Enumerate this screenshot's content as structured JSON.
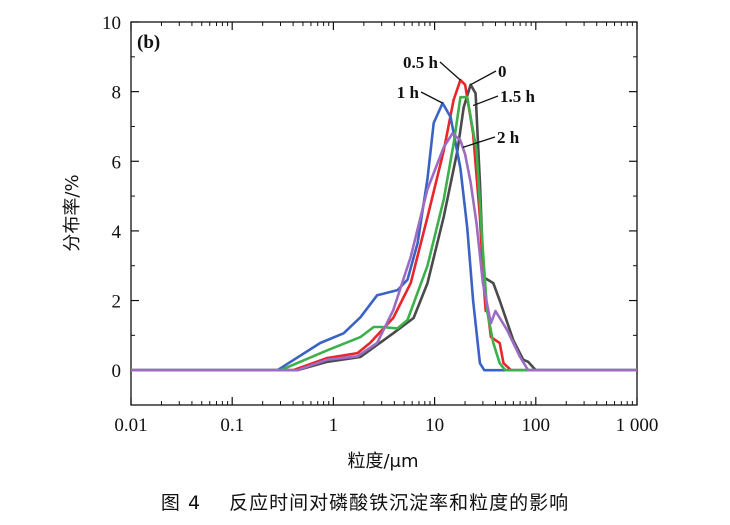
{
  "chart_data": {
    "type": "line",
    "panel_label": "(b)",
    "xlabel": "粒度/μm",
    "ylabel": "分布率/%",
    "xscale": "log",
    "xlim": [
      0.01,
      1000
    ],
    "ylim": [
      -1,
      10
    ],
    "xticks": [
      0.01,
      0.1,
      1,
      10,
      100,
      1000
    ],
    "xtick_labels": [
      "0.01",
      "0.1",
      "1",
      "10",
      "100",
      "1 000"
    ],
    "yticks": [
      0,
      2,
      4,
      6,
      8,
      10
    ],
    "ytick_labels": [
      "0",
      "2",
      "4",
      "6",
      "8",
      "10"
    ],
    "grid": false,
    "series": [
      {
        "name": "0",
        "color": "#4a4a4a",
        "x": [
          0.01,
          0.44,
          0.87,
          1.85,
          3.9,
          6.2,
          8.5,
          12.3,
          16.8,
          19.4,
          22.7,
          25.4,
          28,
          30.5,
          38,
          44,
          60,
          75,
          84,
          100,
          1000
        ],
        "y": [
          0,
          0,
          0.24,
          0.38,
          1.06,
          1.5,
          2.5,
          4.4,
          6.3,
          7.55,
          8.2,
          7.95,
          5.4,
          2.67,
          2.5,
          2.0,
          0.86,
          0.3,
          0.24,
          0,
          0
        ],
        "label_at": [
          22.7,
          8.2
        ]
      },
      {
        "name": "0.5 h",
        "color": "#e8262b",
        "x": [
          0.01,
          0.4,
          0.87,
          1.73,
          2.3,
          3.9,
          5.8,
          8.5,
          12.3,
          15.4,
          18,
          20,
          24,
          28,
          30.5,
          32,
          33.5,
          36,
          44,
          48,
          57,
          1000
        ],
        "y": [
          0,
          0,
          0.35,
          0.49,
          0.78,
          1.5,
          2.5,
          4.4,
          6.3,
          7.76,
          8.33,
          8.2,
          6.8,
          4.4,
          2.5,
          1.7,
          1.7,
          0.95,
          0.78,
          0.2,
          0,
          0
        ],
        "label_at": [
          18,
          8.33
        ]
      },
      {
        "name": "1 h",
        "color": "#3b63c4",
        "x": [
          0.01,
          0.28,
          0.74,
          1.26,
          1.85,
          2.7,
          4.3,
          5.4,
          6.8,
          8.5,
          9.8,
          12,
          14.4,
          18,
          21,
          24,
          28,
          31,
          1000
        ],
        "y": [
          0,
          0,
          0.78,
          1.06,
          1.52,
          2.15,
          2.3,
          2.6,
          3.65,
          5.5,
          7.1,
          7.67,
          7.27,
          5.8,
          4.1,
          2.0,
          0.2,
          0,
          0
        ],
        "label_at": [
          12,
          7.67
        ]
      },
      {
        "name": "1.5 h",
        "color": "#3cb04a",
        "x": [
          0.01,
          0.3,
          0.87,
          1.85,
          2.5,
          3,
          4.3,
          5.4,
          8.5,
          12.3,
          15.4,
          18,
          21,
          26,
          30,
          33,
          38,
          44,
          50,
          1000
        ],
        "y": [
          0,
          0,
          0.57,
          0.95,
          1.24,
          1.24,
          1.2,
          1.44,
          3.0,
          4.9,
          6.5,
          7.84,
          7.84,
          6.3,
          3.45,
          1.7,
          0.78,
          0.2,
          0,
          0
        ],
        "label_at": [
          24,
          7.6
        ]
      },
      {
        "name": "2 h",
        "color": "#9b6cc2",
        "x": [
          0.01,
          0.44,
          0.87,
          1.73,
          2.7,
          3.9,
          5.8,
          8.5,
          12.3,
          15,
          18,
          20,
          22.7,
          26,
          30,
          36,
          40,
          52,
          70,
          84,
          1000
        ],
        "y": [
          0,
          0,
          0.3,
          0.4,
          0.78,
          1.72,
          3.25,
          5.2,
          6.4,
          6.8,
          6.6,
          6.2,
          5.4,
          4.2,
          2.5,
          1.35,
          1.7,
          1.15,
          0.38,
          0,
          0
        ],
        "label_at": [
          19,
          6.4
        ]
      }
    ],
    "annotations": [
      "0.5 h",
      "0",
      "1 h",
      "1.5 h",
      "2 h"
    ]
  },
  "caption": {
    "figure": "图 4",
    "title": "反应时间对磷酸铁沉淀率和粒度的影响"
  }
}
